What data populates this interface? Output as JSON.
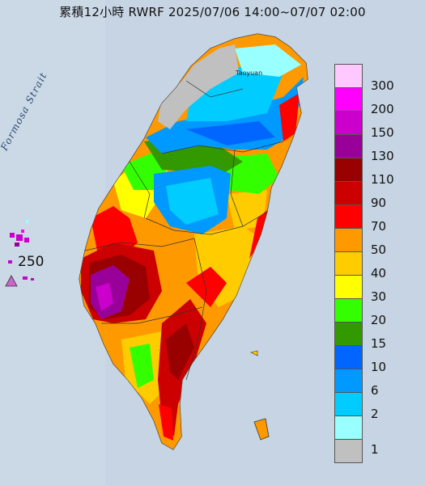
{
  "title": "累積12小時 RWRF 2025/07/06 14:00~07/07 02:00",
  "strait_label": "Formosa Strait",
  "city_label": "Taoyuan",
  "max_value_label": "250",
  "legend": {
    "levels": [
      {
        "label": "300",
        "color": "#ffc8ff"
      },
      {
        "label": "200",
        "color": "#ff00ff"
      },
      {
        "label": "150",
        "color": "#cc00cc"
      },
      {
        "label": "130",
        "color": "#990099"
      },
      {
        "label": "110",
        "color": "#990000"
      },
      {
        "label": "90",
        "color": "#cc0000"
      },
      {
        "label": "70",
        "color": "#ff0000"
      },
      {
        "label": "50",
        "color": "#ff9900"
      },
      {
        "label": "40",
        "color": "#ffcc00"
      },
      {
        "label": "30",
        "color": "#ffff00"
      },
      {
        "label": "20",
        "color": "#33ff00"
      },
      {
        "label": "15",
        "color": "#339900"
      },
      {
        "label": "10",
        "color": "#0066ff"
      },
      {
        "label": "6",
        "color": "#0099ff"
      },
      {
        "label": "2",
        "color": "#00ccff"
      },
      {
        "label": "1",
        "color": "#99ffff"
      },
      {
        "label": "",
        "color": "#c0c0c0"
      }
    ]
  }
}
